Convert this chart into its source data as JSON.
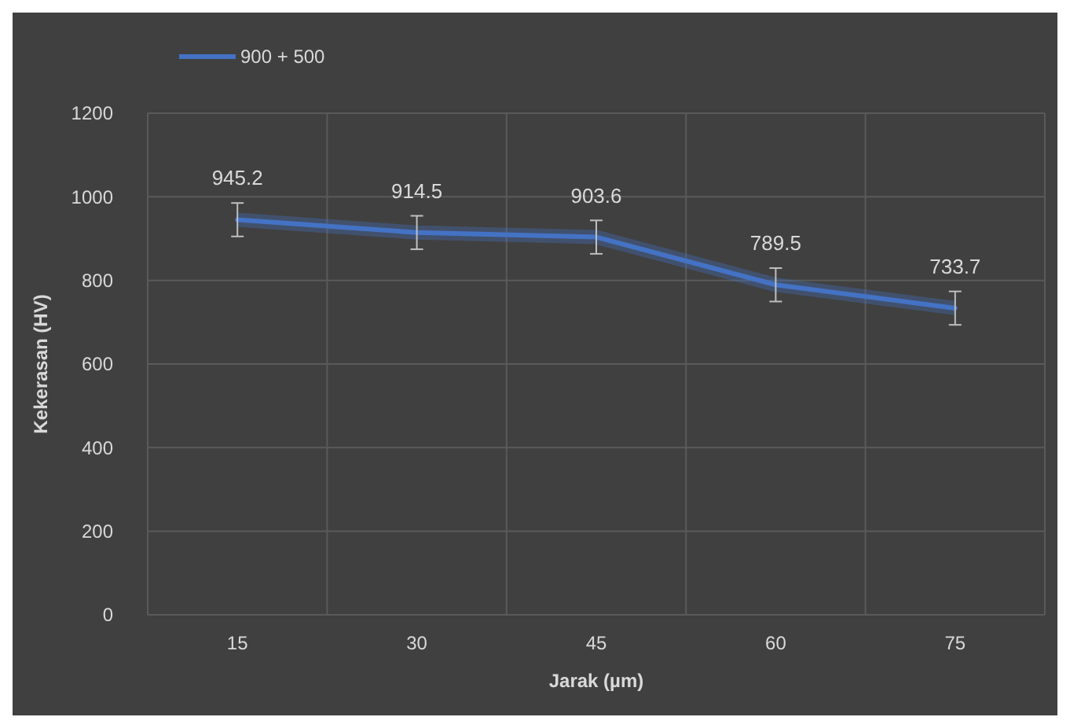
{
  "chart_data": {
    "type": "line",
    "xlabel": "Jarak (µm)",
    "ylabel": "Kekerasan (HV)",
    "categories": [
      "15",
      "30",
      "45",
      "60",
      "75"
    ],
    "series": [
      {
        "name": "900 + 500",
        "color": "#4472c4",
        "values": [
          945.2,
          914.5,
          903.6,
          789.5,
          733.7
        ],
        "errors": [
          40,
          40,
          40,
          40,
          40
        ]
      }
    ],
    "ylim": [
      0,
      1200
    ],
    "yticks": [
      0,
      200,
      400,
      600,
      800,
      1000,
      1200
    ],
    "grid": true,
    "legend": "top left",
    "data_labels": true,
    "marker": "none",
    "line_style": "solid"
  }
}
